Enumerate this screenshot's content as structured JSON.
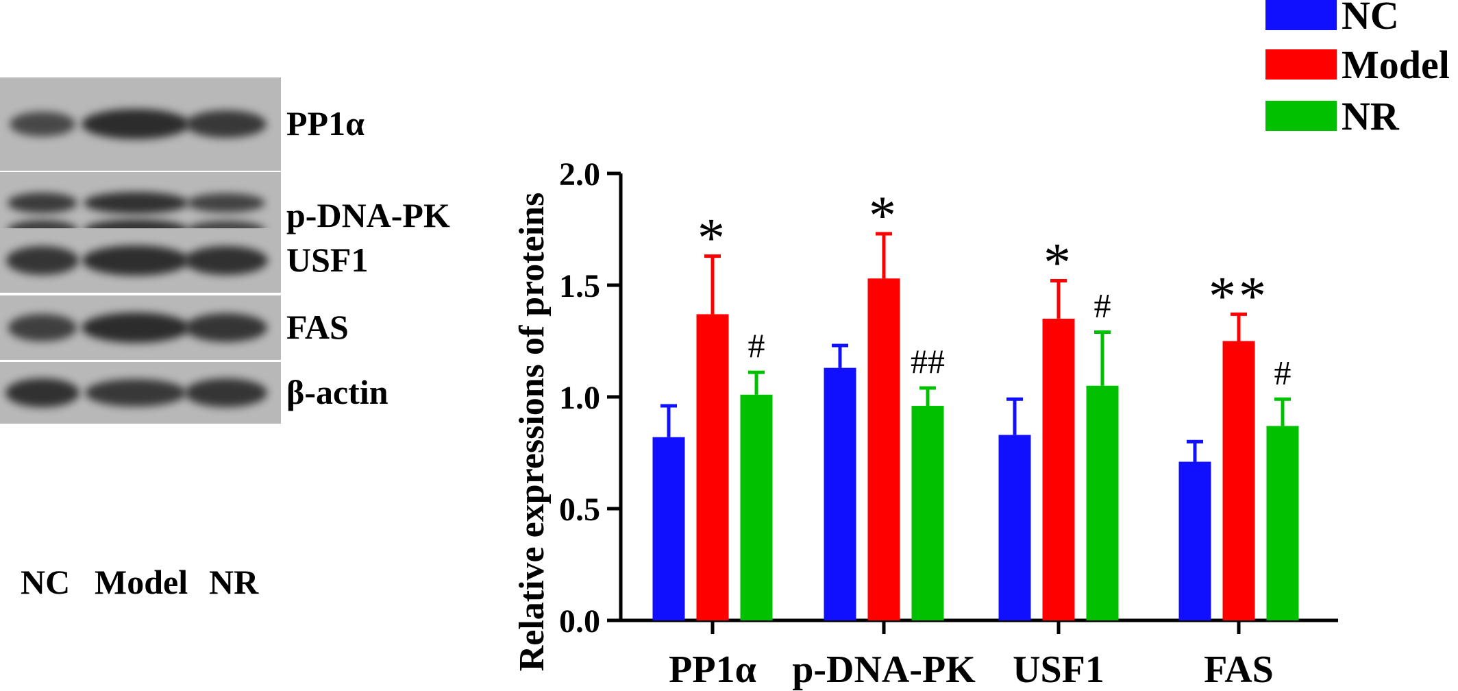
{
  "blot": {
    "rows": [
      {
        "label": "PP1α",
        "intensity": [
          0.55,
          1.0,
          0.8
        ]
      },
      {
        "label": "p-DNA-PK",
        "intensity": [
          0.75,
          0.9,
          0.65
        ]
      },
      {
        "label": "USF1",
        "intensity": [
          0.85,
          0.95,
          0.9
        ]
      },
      {
        "label": "FAS",
        "intensity": [
          0.7,
          1.0,
          0.85
        ]
      },
      {
        "label": "β-actin",
        "intensity": [
          0.9,
          0.8,
          0.85
        ]
      }
    ],
    "lanes": [
      "NC",
      "Model",
      "NR"
    ]
  },
  "legend": [
    {
      "name": "NC",
      "color": "#1010ff"
    },
    {
      "name": "Model",
      "color": "#ff0000"
    },
    {
      "name": "NR",
      "color": "#00c000"
    }
  ],
  "chart_data": {
    "type": "bar",
    "ylabel": "Relative expressions of proteins",
    "xlabel": "",
    "ylim": [
      0,
      2.0
    ],
    "yticks": [
      "0.0",
      "0.5",
      "1.0",
      "1.5",
      "2.0"
    ],
    "categories": [
      "PP1α",
      "p-DNA-PK",
      "USF1",
      "FAS"
    ],
    "series": [
      {
        "name": "NC",
        "color": "#1010ff",
        "values": [
          0.82,
          1.13,
          0.83,
          0.71
        ],
        "errors": [
          0.14,
          0.1,
          0.16,
          0.09
        ]
      },
      {
        "name": "Model",
        "color": "#ff0000",
        "values": [
          1.37,
          1.53,
          1.35,
          1.25
        ],
        "errors": [
          0.26,
          0.2,
          0.17,
          0.12
        ]
      },
      {
        "name": "NR",
        "color": "#00c000",
        "values": [
          1.01,
          0.96,
          1.05,
          0.87
        ],
        "errors": [
          0.1,
          0.08,
          0.24,
          0.12
        ]
      }
    ],
    "annotations": [
      {
        "category": 0,
        "series": 1,
        "text": "*"
      },
      {
        "category": 0,
        "series": 2,
        "text": "#"
      },
      {
        "category": 1,
        "series": 1,
        "text": "*"
      },
      {
        "category": 1,
        "series": 2,
        "text": "##"
      },
      {
        "category": 2,
        "series": 1,
        "text": "*"
      },
      {
        "category": 2,
        "series": 2,
        "text": "#"
      },
      {
        "category": 3,
        "series": 1,
        "text": "**"
      },
      {
        "category": 3,
        "series": 2,
        "text": "#"
      }
    ]
  }
}
